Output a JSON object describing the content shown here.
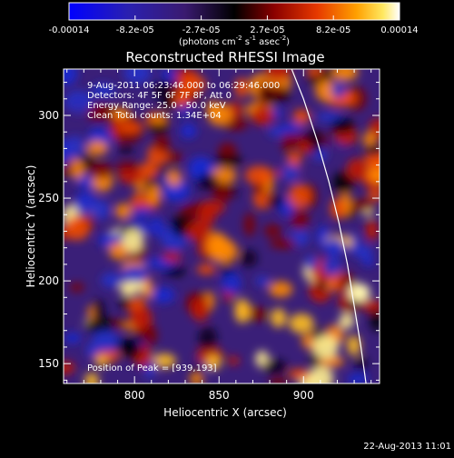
{
  "chart_data": {
    "type": "heatmap",
    "title": "Reconstructed RHESSI Image",
    "xlabel": "Heliocentric X (arcsec)",
    "ylabel": "Heliocentric Y (arcsec)",
    "xlim": [
      758,
      945
    ],
    "ylim": [
      138,
      328
    ],
    "x_ticks": [
      800,
      850,
      900
    ],
    "y_ticks": [
      150,
      200,
      250,
      300
    ],
    "colorbar": {
      "label_text": "(photons cm",
      "label_sup1": "-2",
      "label_mid": " s",
      "label_sup2": "-1",
      "label_end": " asec",
      "label_sup3": "-2",
      "label_close": ")",
      "ticks": [
        "-0.00014",
        "-8.2e-05",
        "-2.7e-05",
        "2.7e-05",
        "8.2e-05",
        "0.00014"
      ],
      "range": [
        -0.00014,
        0.00014
      ],
      "colormap": [
        "#0000ff",
        "#3a2080",
        "#301060",
        "#000000",
        "#7a0000",
        "#e63000",
        "#ff9a00",
        "#ffe040",
        "#ffffff"
      ]
    },
    "annotations": {
      "time_range": "9-Aug-2011 06:23:46.000 to 06:29:46.000",
      "detectors": "Detectors: 4F 5F 6F 7F 8F, Att 0",
      "energy": "Energy Range: 25.0 - 50.0 keV",
      "method": "Clean     Total counts: 1.34E+04",
      "peak": "Position of Peak = [939,193]"
    },
    "peak_position": [
      939,
      193
    ],
    "limb_curve": [
      [
        893,
        328
      ],
      [
        900,
        310
      ],
      [
        908,
        285
      ],
      [
        915,
        260
      ],
      [
        921,
        235
      ],
      [
        926,
        210
      ],
      [
        930,
        185
      ],
      [
        934,
        160
      ],
      [
        937,
        138
      ]
    ]
  },
  "footer": {
    "timestamp": "22-Aug-2013 11:01"
  }
}
